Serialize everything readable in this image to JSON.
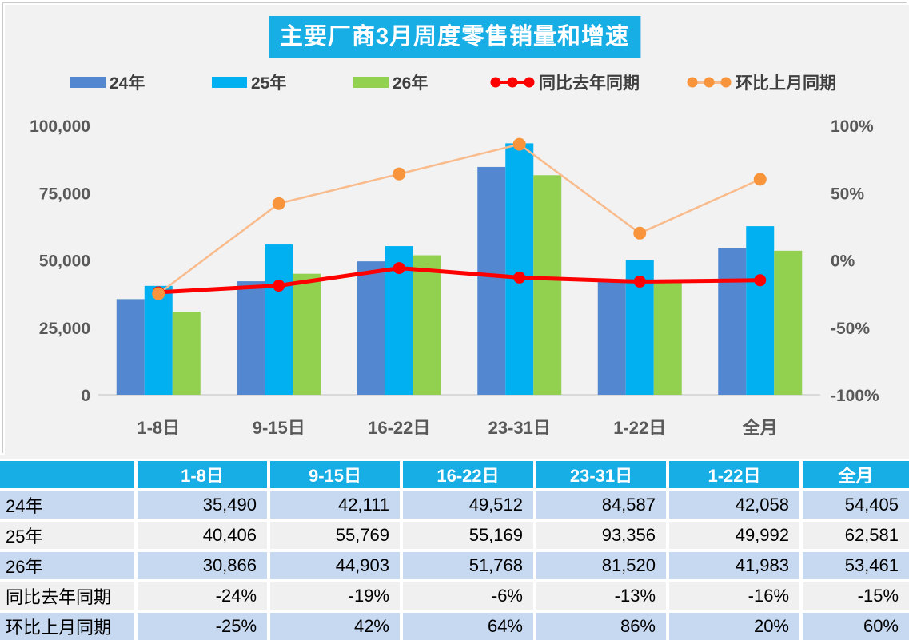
{
  "title": "主要厂商3月周度零售销量和增速",
  "colors": {
    "title_bg": "#17ADE5",
    "header_bg": "#17ADE5",
    "bar_24": "#5388D1",
    "bar_25": "#00B0F0",
    "bar_26": "#92D050",
    "line_yoy": "#FE0000",
    "line_mom_marker": "#F7943C",
    "line_mom_stroke": "#F9BB8B",
    "row_band_blue": "#C6D9F1",
    "row_band_gray": "#F0F0F0",
    "axis_text": "#595959",
    "baseline": "#D9D9D9",
    "background": "#F2F2F2"
  },
  "legend": [
    {
      "label": "24年",
      "type": "bar",
      "color": "#5388D1"
    },
    {
      "label": "25年",
      "type": "bar",
      "color": "#00B0F0"
    },
    {
      "label": "26年",
      "type": "bar",
      "color": "#92D050"
    },
    {
      "label": "同比去年同期",
      "type": "line",
      "color": "#FE0000",
      "marker": "#FE0000"
    },
    {
      "label": "环比上月同期",
      "type": "line",
      "color": "#F9BB8B",
      "marker": "#F7943C"
    }
  ],
  "chart_data": {
    "type": "bar",
    "subtype": "grouped-bars-with-lines",
    "title": "主要厂商3月周度零售销量和增速",
    "categories": [
      "1-8日",
      "9-15日",
      "16-22日",
      "23-31日",
      "1-22日",
      "全月"
    ],
    "series": [
      {
        "name": "24年",
        "kind": "bar",
        "color": "#5388D1",
        "axis": "left",
        "values": [
          35490,
          42111,
          49512,
          84587,
          42058,
          54405
        ]
      },
      {
        "name": "25年",
        "kind": "bar",
        "color": "#00B0F0",
        "axis": "left",
        "values": [
          40406,
          55769,
          55169,
          93356,
          49992,
          62581
        ]
      },
      {
        "name": "26年",
        "kind": "bar",
        "color": "#92D050",
        "axis": "left",
        "values": [
          30866,
          44903,
          51768,
          81520,
          41983,
          53461
        ]
      },
      {
        "name": "同比去年同期",
        "kind": "line",
        "color": "#FE0000",
        "marker": "#FE0000",
        "axis": "right",
        "values_pct": [
          -24,
          -19,
          -6,
          -13,
          -16,
          -15
        ]
      },
      {
        "name": "环比上月同期",
        "kind": "line",
        "color": "#F9BB8B",
        "marker": "#F7943C",
        "axis": "right",
        "values_pct": [
          -25,
          42,
          64,
          86,
          20,
          60
        ]
      }
    ],
    "left_axis": {
      "min": 0,
      "max": 100000,
      "tick_labels": [
        "100,000",
        "75,000",
        "50,000",
        "25,000",
        "0"
      ]
    },
    "right_axis": {
      "min": -100,
      "max": 100,
      "tick_labels": [
        "100%",
        "50%",
        "0%",
        "-50%",
        "-100%"
      ]
    },
    "grid": false,
    "legend_position": "top"
  },
  "table": {
    "header": [
      "",
      "1-8日",
      "9-15日",
      "16-22日",
      "23-31日",
      "1-22日",
      "全月"
    ],
    "rows": [
      {
        "label": "24年",
        "cells": [
          "35,490",
          "42,111",
          "49,512",
          "84,587",
          "42,058",
          "54,405"
        ]
      },
      {
        "label": "25年",
        "cells": [
          "40,406",
          "55,769",
          "55,169",
          "93,356",
          "49,992",
          "62,581"
        ]
      },
      {
        "label": "26年",
        "cells": [
          "30,866",
          "44,903",
          "51,768",
          "81,520",
          "41,983",
          "53,461"
        ]
      },
      {
        "label": "同比去年同期",
        "cells": [
          "-24%",
          "-19%",
          "-6%",
          "-13%",
          "-16%",
          "-15%"
        ]
      },
      {
        "label": "环比上月同期",
        "cells": [
          "-25%",
          "42%",
          "64%",
          "86%",
          "20%",
          "60%"
        ]
      }
    ]
  }
}
